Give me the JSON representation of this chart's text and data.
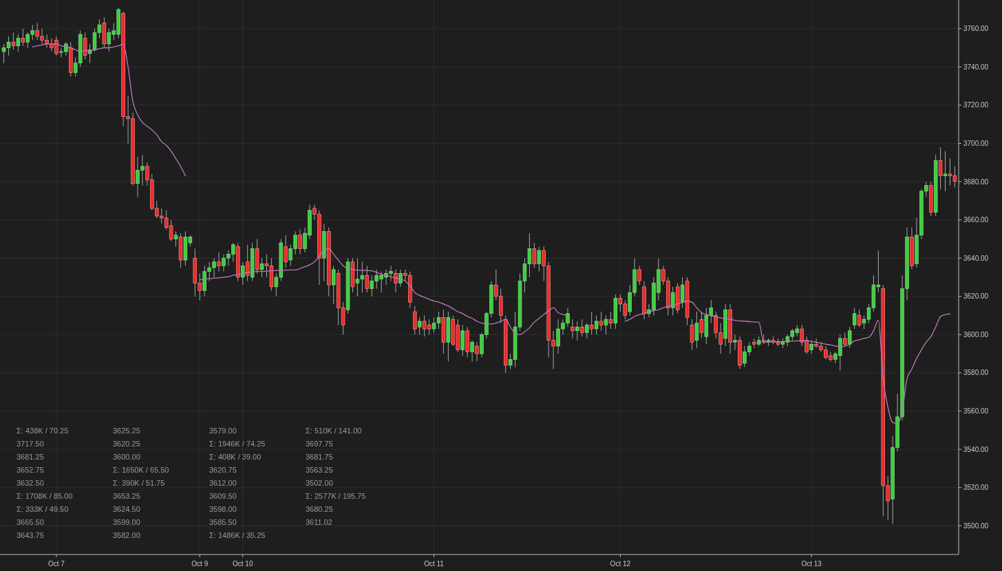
{
  "chart_data": {
    "type": "candlestick",
    "categories": [
      null,
      null,
      null,
      null,
      null,
      null,
      null,
      null,
      null,
      null,
      null,
      "Oct 7",
      null,
      null,
      null,
      null,
      null,
      null,
      null,
      null,
      null,
      null,
      null,
      null,
      null,
      null,
      null,
      null,
      null,
      null,
      null,
      null,
      null,
      null,
      null,
      null,
      null,
      null,
      null,
      null,
      null,
      "Oct 9",
      null,
      null,
      null,
      null,
      null,
      null,
      null,
      null,
      "Oct 10",
      null,
      null,
      null,
      null,
      null,
      null,
      null,
      null,
      null,
      null,
      null,
      null,
      null,
      null,
      null,
      null,
      null,
      null,
      null,
      null,
      null,
      null,
      null,
      null,
      null,
      null,
      null,
      null,
      null,
      null,
      null,
      null,
      null,
      null,
      null,
      null,
      null,
      null,
      null,
      "Oct 11",
      null,
      null,
      null,
      null,
      null,
      null,
      null,
      null,
      null,
      null,
      null,
      null,
      null,
      null,
      null,
      null,
      null,
      null,
      null,
      null,
      null,
      null,
      null,
      null,
      null,
      null,
      null,
      null,
      null,
      null,
      null,
      null,
      null,
      null,
      null,
      null,
      null,
      null,
      "Oct 12",
      null,
      null,
      null,
      null,
      null,
      null,
      null,
      null,
      null,
      null,
      null,
      null,
      null,
      null,
      null,
      null,
      null,
      null,
      null,
      null,
      null,
      null,
      null,
      null,
      null,
      null,
      null,
      null,
      null,
      null,
      null,
      null,
      null,
      null,
      null,
      null,
      null,
      null,
      null,
      "Oct 13",
      null,
      null,
      null,
      null,
      null,
      null,
      null,
      null,
      null,
      null,
      null,
      null,
      null,
      null,
      null,
      null,
      null,
      null,
      null,
      null,
      null,
      null,
      null,
      null,
      null,
      null,
      null,
      null,
      null,
      null
    ],
    "ohlc": [
      [
        3748,
        3752,
        3742,
        3750
      ],
      [
        3750,
        3756,
        3746,
        3753
      ],
      [
        3753,
        3758,
        3749,
        3751
      ],
      [
        3751,
        3757,
        3748,
        3755
      ],
      [
        3755,
        3760,
        3751,
        3753
      ],
      [
        3753,
        3758,
        3750,
        3757
      ],
      [
        3757,
        3762,
        3754,
        3759
      ],
      [
        3759,
        3763,
        3754,
        3756
      ],
      [
        3756,
        3760,
        3752,
        3754
      ],
      [
        3754,
        3757,
        3750,
        3752
      ],
      [
        3752,
        3755,
        3748,
        3750
      ],
      [
        3754,
        3756,
        3746,
        3747
      ],
      [
        3748,
        3750,
        3745,
        3748
      ],
      [
        3748,
        3753,
        3746,
        3752
      ],
      [
        3750,
        3753,
        3735,
        3737
      ],
      [
        3737,
        3745,
        3735,
        3742
      ],
      [
        3742,
        3759,
        3740,
        3757
      ],
      [
        3755,
        3758,
        3744,
        3746
      ],
      [
        3747,
        3752,
        3742,
        3749
      ],
      [
        3749,
        3760,
        3748,
        3758
      ],
      [
        3758,
        3765,
        3755,
        3762
      ],
      [
        3763,
        3766,
        3750,
        3752
      ],
      [
        3752,
        3760,
        3748,
        3758
      ],
      [
        3757,
        3763,
        3754,
        3759
      ],
      [
        3757,
        3771,
        3755,
        3770
      ],
      [
        3768,
        3769,
        3709,
        3714
      ],
      [
        3714,
        3725,
        3700,
        3713
      ],
      [
        3713,
        3716,
        3678,
        3679
      ],
      [
        3679,
        3693,
        3672,
        3686
      ],
      [
        3686,
        3694,
        3678,
        3688
      ],
      [
        3688,
        3690,
        3678,
        3681
      ],
      [
        3681,
        3684,
        3665,
        3666
      ],
      [
        3666,
        3670,
        3661,
        3662
      ],
      [
        3662,
        3666,
        3658,
        3661
      ],
      [
        3661,
        3665,
        3655,
        3656
      ],
      [
        3657,
        3660,
        3649,
        3650
      ],
      [
        3650,
        3654,
        3646,
        3652
      ],
      [
        3651,
        3653,
        3635,
        3639
      ],
      [
        3639,
        3654,
        3636,
        3651
      ],
      [
        3648,
        3652,
        3646,
        3651
      ],
      [
        3640,
        3645,
        3620,
        3627
      ],
      [
        3627,
        3632,
        3618,
        3623
      ],
      [
        3623,
        3636,
        3620,
        3633
      ],
      [
        3633,
        3638,
        3628,
        3635
      ],
      [
        3635,
        3640,
        3630,
        3638
      ],
      [
        3638,
        3643,
        3633,
        3636
      ],
      [
        3636,
        3642,
        3633,
        3640
      ],
      [
        3640,
        3644,
        3636,
        3642
      ],
      [
        3642,
        3648,
        3638,
        3647
      ],
      [
        3646,
        3648,
        3628,
        3630
      ],
      [
        3630,
        3638,
        3626,
        3636
      ],
      [
        3638,
        3647,
        3628,
        3631
      ],
      [
        3630,
        3648,
        3628,
        3645
      ],
      [
        3645,
        3650,
        3632,
        3634
      ],
      [
        3634,
        3640,
        3630,
        3637
      ],
      [
        3637,
        3642,
        3630,
        3636
      ],
      [
        3636,
        3640,
        3623,
        3625
      ],
      [
        3625,
        3632,
        3620,
        3630
      ],
      [
        3630,
        3650,
        3628,
        3648
      ],
      [
        3646,
        3652,
        3635,
        3638
      ],
      [
        3639,
        3647,
        3636,
        3645
      ],
      [
        3645,
        3654,
        3642,
        3652
      ],
      [
        3652,
        3655,
        3642,
        3645
      ],
      [
        3645,
        3656,
        3643,
        3653
      ],
      [
        3652,
        3668,
        3650,
        3665
      ],
      [
        3666,
        3668,
        3660,
        3663
      ],
      [
        3663,
        3665,
        3626,
        3640
      ],
      [
        3640,
        3658,
        3628,
        3654
      ],
      [
        3654,
        3656,
        3620,
        3626
      ],
      [
        3626,
        3636,
        3616,
        3634
      ],
      [
        3632,
        3634,
        3605,
        3614
      ],
      [
        3614,
        3617,
        3600,
        3605
      ],
      [
        3613,
        3640,
        3611,
        3638
      ],
      [
        3638,
        3640,
        3622,
        3625
      ],
      [
        3627,
        3640,
        3620,
        3629
      ],
      [
        3629,
        3638,
        3622,
        3631
      ],
      [
        3631,
        3636,
        3622,
        3624
      ],
      [
        3624,
        3631,
        3620,
        3628
      ],
      [
        3628,
        3634,
        3624,
        3631
      ],
      [
        3629,
        3633,
        3622,
        3631
      ],
      [
        3630,
        3634,
        3626,
        3632
      ],
      [
        3632,
        3636,
        3628,
        3633
      ],
      [
        3632,
        3634,
        3622,
        3627
      ],
      [
        3627,
        3634,
        3625,
        3632
      ],
      [
        3632,
        3634,
        3628,
        3631
      ],
      [
        3631,
        3633,
        3614,
        3617
      ],
      [
        3612,
        3615,
        3600,
        3603
      ],
      [
        3604,
        3609,
        3600,
        3607
      ],
      [
        3607,
        3610,
        3599,
        3603
      ],
      [
        3605,
        3608,
        3600,
        3603
      ],
      [
        3603,
        3609,
        3601,
        3606
      ],
      [
        3606,
        3612,
        3603,
        3609
      ],
      [
        3609,
        3613,
        3590,
        3596
      ],
      [
        3596,
        3612,
        3586,
        3609
      ],
      [
        3608,
        3610,
        3594,
        3595
      ],
      [
        3605,
        3608,
        3591,
        3592
      ],
      [
        3592,
        3605,
        3589,
        3602
      ],
      [
        3602,
        3604,
        3588,
        3591
      ],
      [
        3591,
        3597,
        3586,
        3596
      ],
      [
        3594,
        3596,
        3586,
        3590
      ],
      [
        3590,
        3601,
        3588,
        3600
      ],
      [
        3600,
        3612,
        3598,
        3611
      ],
      [
        3611,
        3628,
        3609,
        3626
      ],
      [
        3626,
        3634,
        3618,
        3620
      ],
      [
        3620,
        3624,
        3606,
        3610
      ],
      [
        3608,
        3610,
        3580,
        3584
      ],
      [
        3584,
        3590,
        3582,
        3587
      ],
      [
        3587,
        3612,
        3583,
        3604
      ],
      [
        3604,
        3632,
        3602,
        3628
      ],
      [
        3628,
        3640,
        3622,
        3637
      ],
      [
        3637,
        3653,
        3630,
        3645
      ],
      [
        3645,
        3648,
        3635,
        3637
      ],
      [
        3637,
        3646,
        3633,
        3644
      ],
      [
        3644,
        3646,
        3628,
        3636
      ],
      [
        3636,
        3638,
        3588,
        3597
      ],
      [
        3597,
        3602,
        3582,
        3594
      ],
      [
        3594,
        3608,
        3590,
        3603
      ],
      [
        3603,
        3608,
        3600,
        3606
      ],
      [
        3606,
        3614,
        3604,
        3611
      ],
      [
        3604,
        3608,
        3598,
        3602
      ],
      [
        3602,
        3607,
        3597,
        3604
      ],
      [
        3604,
        3608,
        3599,
        3601
      ],
      [
        3601,
        3606,
        3598,
        3605
      ],
      [
        3605,
        3612,
        3600,
        3603
      ],
      [
        3603,
        3610,
        3600,
        3607
      ],
      [
        3607,
        3612,
        3602,
        3605
      ],
      [
        3605,
        3610,
        3600,
        3608
      ],
      [
        3608,
        3612,
        3603,
        3606
      ],
      [
        3606,
        3621,
        3603,
        3619
      ],
      [
        3619,
        3621,
        3612,
        3616
      ],
      [
        3616,
        3618,
        3608,
        3610
      ],
      [
        3612,
        3626,
        3610,
        3622
      ],
      [
        3622,
        3640,
        3620,
        3634
      ],
      [
        3634,
        3636,
        3626,
        3628
      ],
      [
        3625,
        3628,
        3608,
        3611
      ],
      [
        3611,
        3616,
        3609,
        3613
      ],
      [
        3613,
        3630,
        3610,
        3627
      ],
      [
        3622,
        3640,
        3618,
        3634
      ],
      [
        3634,
        3636,
        3626,
        3628
      ],
      [
        3628,
        3630,
        3610,
        3614
      ],
      [
        3614,
        3625,
        3610,
        3622
      ],
      [
        3625,
        3627,
        3611,
        3613
      ],
      [
        3617,
        3630,
        3614,
        3626
      ],
      [
        3628,
        3630,
        3605,
        3609
      ],
      [
        3605,
        3608,
        3592,
        3596
      ],
      [
        3597,
        3612,
        3593,
        3606
      ],
      [
        3608,
        3612,
        3598,
        3601
      ],
      [
        3599,
        3614,
        3595,
        3610
      ],
      [
        3610,
        3618,
        3606,
        3614
      ],
      [
        3610,
        3612,
        3598,
        3601
      ],
      [
        3601,
        3606,
        3590,
        3595
      ],
      [
        3598,
        3616,
        3594,
        3613
      ],
      [
        3613,
        3616,
        3590,
        3596
      ],
      [
        3596,
        3600,
        3592,
        3597
      ],
      [
        3597,
        3599,
        3582,
        3584
      ],
      [
        3585,
        3594,
        3583,
        3591
      ],
      [
        3591,
        3596,
        3589,
        3594
      ],
      [
        3596,
        3598,
        3593,
        3595
      ],
      [
        3595,
        3599,
        3594,
        3597
      ],
      [
        3597,
        3600,
        3595,
        3596
      ],
      [
        3596,
        3598,
        3594,
        3597
      ],
      [
        3597,
        3599,
        3595,
        3596
      ],
      [
        3596,
        3598,
        3594,
        3595
      ],
      [
        3595,
        3598,
        3593,
        3596
      ],
      [
        3596,
        3600,
        3594,
        3599
      ],
      [
        3599,
        3603,
        3597,
        3602
      ],
      [
        3601,
        3605,
        3599,
        3603
      ],
      [
        3603,
        3605,
        3594,
        3596
      ],
      [
        3597,
        3599,
        3590,
        3591
      ],
      [
        3592,
        3597,
        3590,
        3595
      ],
      [
        3595,
        3598,
        3593,
        3594
      ],
      [
        3594,
        3596,
        3591,
        3592
      ],
      [
        3592,
        3594,
        3587,
        3588
      ],
      [
        3589,
        3591,
        3586,
        3587
      ],
      [
        3587,
        3591,
        3585,
        3590
      ],
      [
        3589,
        3600,
        3581,
        3598
      ],
      [
        3598,
        3601,
        3594,
        3595
      ],
      [
        3595,
        3604,
        3593,
        3602
      ],
      [
        3605,
        3614,
        3603,
        3611
      ],
      [
        3610,
        3613,
        3604,
        3605
      ],
      [
        3606,
        3610,
        3603,
        3608
      ],
      [
        3608,
        3616,
        3606,
        3614
      ],
      [
        3614,
        3631,
        3612,
        3626
      ],
      [
        3625,
        3644,
        3622,
        3626
      ],
      [
        3624,
        3626,
        3505,
        3521
      ],
      [
        3521,
        3526,
        3503,
        3513
      ],
      [
        3514,
        3547,
        3501,
        3541
      ],
      [
        3541,
        3569,
        3539,
        3557
      ],
      [
        3557,
        3631,
        3555,
        3624
      ],
      [
        3624,
        3656,
        3618,
        3651
      ],
      [
        3651,
        3656,
        3634,
        3636
      ],
      [
        3637,
        3661,
        3635,
        3652
      ],
      [
        3652,
        3676,
        3650,
        3675
      ],
      [
        3675,
        3680,
        3672,
        3678
      ],
      [
        3678,
        3680,
        3662,
        3664
      ],
      [
        3664,
        3694,
        3662,
        3691
      ],
      [
        3691,
        3698,
        3676,
        3683
      ],
      [
        3683,
        3696,
        3675,
        3684
      ],
      [
        3684,
        3692,
        3678,
        3683
      ],
      [
        3683,
        3688,
        3677,
        3680.25
      ]
    ],
    "series": [
      {
        "type": "line",
        "color": "#b97ab9",
        "values": [
          null,
          null,
          null,
          null,
          null,
          null,
          3750.5,
          3751,
          3751.5,
          3752,
          3752,
          3752,
          3751,
          3750.5,
          3750,
          3749,
          3748,
          3748.5,
          3748.5,
          3749,
          3749.5,
          3750,
          3750,
          3750.5,
          3751,
          3752,
          3740,
          3722,
          3715,
          3711,
          3709,
          3707,
          3704.5,
          3701,
          3699,
          3696,
          3692,
          3688,
          3683,
          null,
          null,
          3628.7,
          3629,
          3629.3,
          3629.5,
          3629.7,
          3630,
          3630.3,
          3631,
          3631.5,
          3632,
          3632.5,
          3632.8,
          3633,
          3633,
          3633.2,
          3633.4,
          3633.5,
          3633.6,
          3633.7,
          3633.8,
          3633.8,
          3634.5,
          3635.5,
          3636.5,
          3638,
          3641,
          3644,
          3645,
          3642,
          3639,
          3636,
          3634.5,
          3634,
          3633.8,
          3633.6,
          3633.5,
          3633.4,
          3632.5,
          3631.5,
          3631,
          3630.3,
          3629.6,
          3629,
          3628,
          3625.5,
          3622,
          3620.5,
          3619.5,
          3618.5,
          3617.5,
          3617,
          3616,
          3615,
          3613.5,
          3612,
          3611,
          3609.5,
          3608.5,
          3607,
          3606,
          3605.8,
          3605.5,
          3606,
          3607,
          3608,
          3604,
          3600.7,
          3600,
          3601.5,
          3603.6,
          3606.5,
          3608.5,
          3610.5,
          3612.5,
          3614,
          3611.5,
          3610.5,
          3610,
          null,
          null,
          null,
          null,
          null,
          null,
          null,
          null,
          null,
          null,
          null,
          3607,
          3608,
          3609.5,
          3610.4,
          3611,
          3612,
          3612.5,
          3613,
          3614,
          3614.8,
          3615.5,
          3616,
          3616.8,
          3617.5,
          3617,
          3614,
          3611.5,
          3610.5,
          3609.8,
          3609.3,
          3608.7,
          3608.3,
          3608,
          3607.5,
          3607.2,
          3607,
          3606.8,
          3606.6,
          3606.5,
          3596,
          3596.1,
          3596.2,
          3596.3,
          3596.4,
          3596.5,
          3596.6,
          3596.7,
          3596.8,
          3596.8,
          3596.5,
          3596,
          3595.5,
          3595,
          3594.6,
          3594,
          3593.6,
          3594,
          3595,
          3596.8,
          3597.3,
          3598,
          3598.6,
          3602,
          3607.6,
          3577,
          3562,
          3554,
          3553.5,
          3560,
          3577,
          3582,
          3587.5,
          3592,
          3596,
          3599,
          3604,
          3609.4,
          3610.5,
          3610.8,
          null
        ]
      }
    ],
    "ylim": [
      3485,
      3775
    ],
    "yticks": [
      {
        "value": 3500,
        "label": "3500.00"
      },
      {
        "value": 3520,
        "label": "3520.00"
      },
      {
        "value": 3540,
        "label": "3540.00"
      },
      {
        "value": 3560,
        "label": "3560.00"
      },
      {
        "value": 3580,
        "label": "3580.00"
      },
      {
        "value": 3600,
        "label": "3600.00"
      },
      {
        "value": 3620,
        "label": "3620.00"
      },
      {
        "value": 3640,
        "label": "3640.00"
      },
      {
        "value": 3660,
        "label": "3660.00"
      },
      {
        "value": 3680,
        "label": "3680.00"
      },
      {
        "value": 3700,
        "label": "3700.00"
      },
      {
        "value": 3720,
        "label": "3720.00"
      },
      {
        "value": 3740,
        "label": "3740.00"
      },
      {
        "value": 3760,
        "label": "3760.00"
      }
    ],
    "grid": true,
    "annotations": [
      "Σ: 438K / 70.25",
      "3717.50",
      "3681.25",
      "3652.75",
      "3632.50",
      "Σ: 1708K / 85.00",
      "Σ: 333K / 49.50",
      "3665.50",
      "3643.75",
      "3625.25",
      "3620.25",
      "3600.00",
      "Σ: 1650K / 65.50",
      "Σ: 390K / 51.75",
      "3653.25",
      "3624.50",
      "3599.00",
      "3582.00",
      "3579.00",
      "Σ: 1946K / 74.25",
      "Σ: 408K / 39.00",
      "3620.75",
      "3612.00",
      "3609.50",
      "3598.00",
      "3585.50",
      "Σ: 1486K / 35.25",
      "Σ: 510K / 141.00",
      "3697.75",
      "3681.75",
      "3563.25",
      "3502.00",
      "Σ: 2577K / 195.75",
      "3680.25",
      "3611.02"
    ]
  }
}
